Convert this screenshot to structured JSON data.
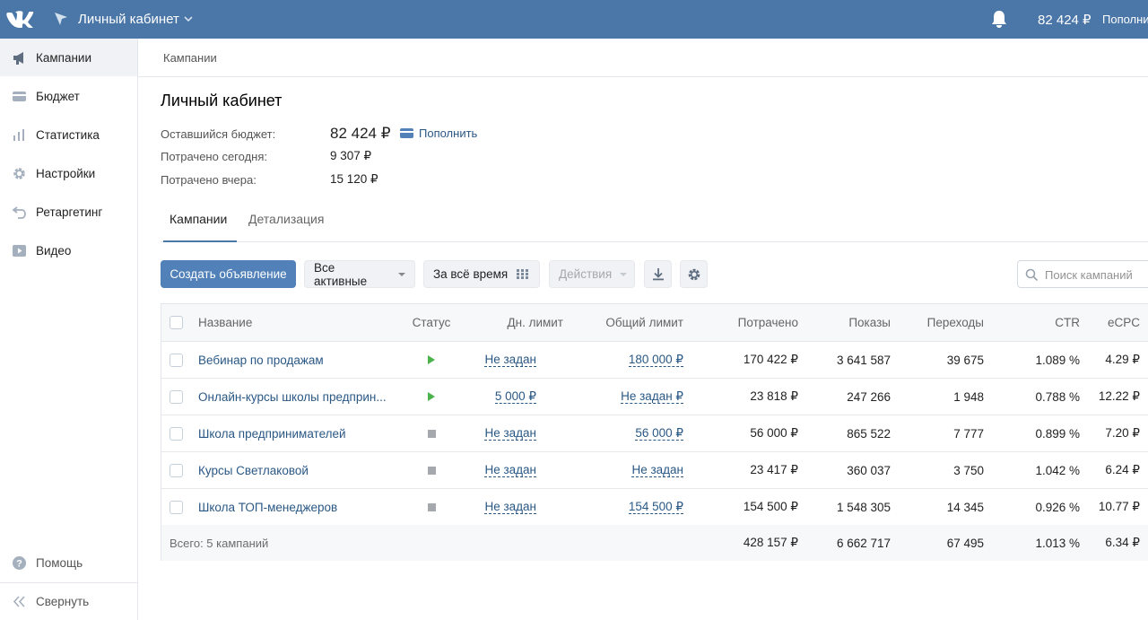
{
  "topbar": {
    "title": "Личный кабинет",
    "balance": "82 424 ₽",
    "topup_label": "Пополни"
  },
  "sidebar": {
    "items": [
      {
        "label": "Кампании",
        "icon": "megaphone-icon"
      },
      {
        "label": "Бюджет",
        "icon": "wallet-icon"
      },
      {
        "label": "Статистика",
        "icon": "bar-chart-icon"
      },
      {
        "label": "Настройки",
        "icon": "gear-icon"
      },
      {
        "label": "Ретаргетинг",
        "icon": "retarget-icon"
      },
      {
        "label": "Видео",
        "icon": "video-icon"
      }
    ],
    "help_label": "Помощь",
    "collapse_label": "Свернуть"
  },
  "breadcrumb": "Кампании",
  "page": {
    "title": "Личный кабинет",
    "budget_label": "Оставшийся бюджет:",
    "budget_value": "82 424 ₽",
    "topup_label": "Пополнить",
    "spent_today_label": "Потрачено сегодня:",
    "spent_today_value": "9 307 ₽",
    "spent_yesterday_label": "Потрачено вчера:",
    "spent_yesterday_value": "15 120 ₽"
  },
  "tabs": [
    {
      "label": "Кампании",
      "active": true
    },
    {
      "label": "Детализация",
      "active": false
    }
  ],
  "toolbar": {
    "create_label": "Создать объявление",
    "filter_label": "Все активные",
    "period_label": "За всё время",
    "actions_label": "Действия",
    "search_placeholder": "Поиск кампаний"
  },
  "table": {
    "columns": [
      "Название",
      "Статус",
      "Дн. лимит",
      "Общий лимит",
      "Потрачено",
      "Показы",
      "Переходы",
      "CTR",
      "eCPC"
    ],
    "rows": [
      {
        "name": "Вебинар по продажам",
        "status": "running",
        "day_limit": "Не задан",
        "total_limit": "180 000 ₽",
        "spent": "170 422 ₽",
        "impressions": "3 641 587",
        "clicks": "39 675",
        "ctr": "1.089 %",
        "ecpc": "4.29 ₽"
      },
      {
        "name": "Онлайн-курсы школы предприн...",
        "status": "running",
        "day_limit": "5 000 ₽",
        "total_limit": "Не задан ₽",
        "spent": "23 818 ₽",
        "impressions": "247 266",
        "clicks": "1 948",
        "ctr": "0.788 %",
        "ecpc": "12.22 ₽"
      },
      {
        "name": "Школа предпринимателей",
        "status": "stopped",
        "day_limit": "Не задан",
        "total_limit": "56 000 ₽",
        "spent": "56 000 ₽",
        "impressions": "865 522",
        "clicks": "7 777",
        "ctr": "0.899 %",
        "ecpc": "7.20 ₽"
      },
      {
        "name": "Курсы Светлаковой",
        "status": "stopped",
        "day_limit": "Не задан",
        "total_limit": "Не задан",
        "spent": "23 417 ₽",
        "impressions": "360 037",
        "clicks": "3 750",
        "ctr": "1.042 %",
        "ecpc": "6.24 ₽"
      },
      {
        "name": "Школа ТОП-менеджеров",
        "status": "stopped",
        "day_limit": "Не задан",
        "total_limit": "154 500 ₽",
        "spent": "154 500 ₽",
        "impressions": "1 548 305",
        "clicks": "14 345",
        "ctr": "0.926 %",
        "ecpc": "10.77 ₽"
      }
    ],
    "footer": {
      "label": "Всего: 5 кампаний",
      "spent": "428 157 ₽",
      "impressions": "6 662 717",
      "clicks": "67 495",
      "ctr": "1.013 %",
      "ecpc": "6.34 ₽"
    }
  },
  "colors": {
    "header_blue": "#4a76a8",
    "button_blue": "#5181b8",
    "link_blue": "#2a5885",
    "running_green": "#4bb34b",
    "stopped_grey": "#a5a9ae"
  }
}
